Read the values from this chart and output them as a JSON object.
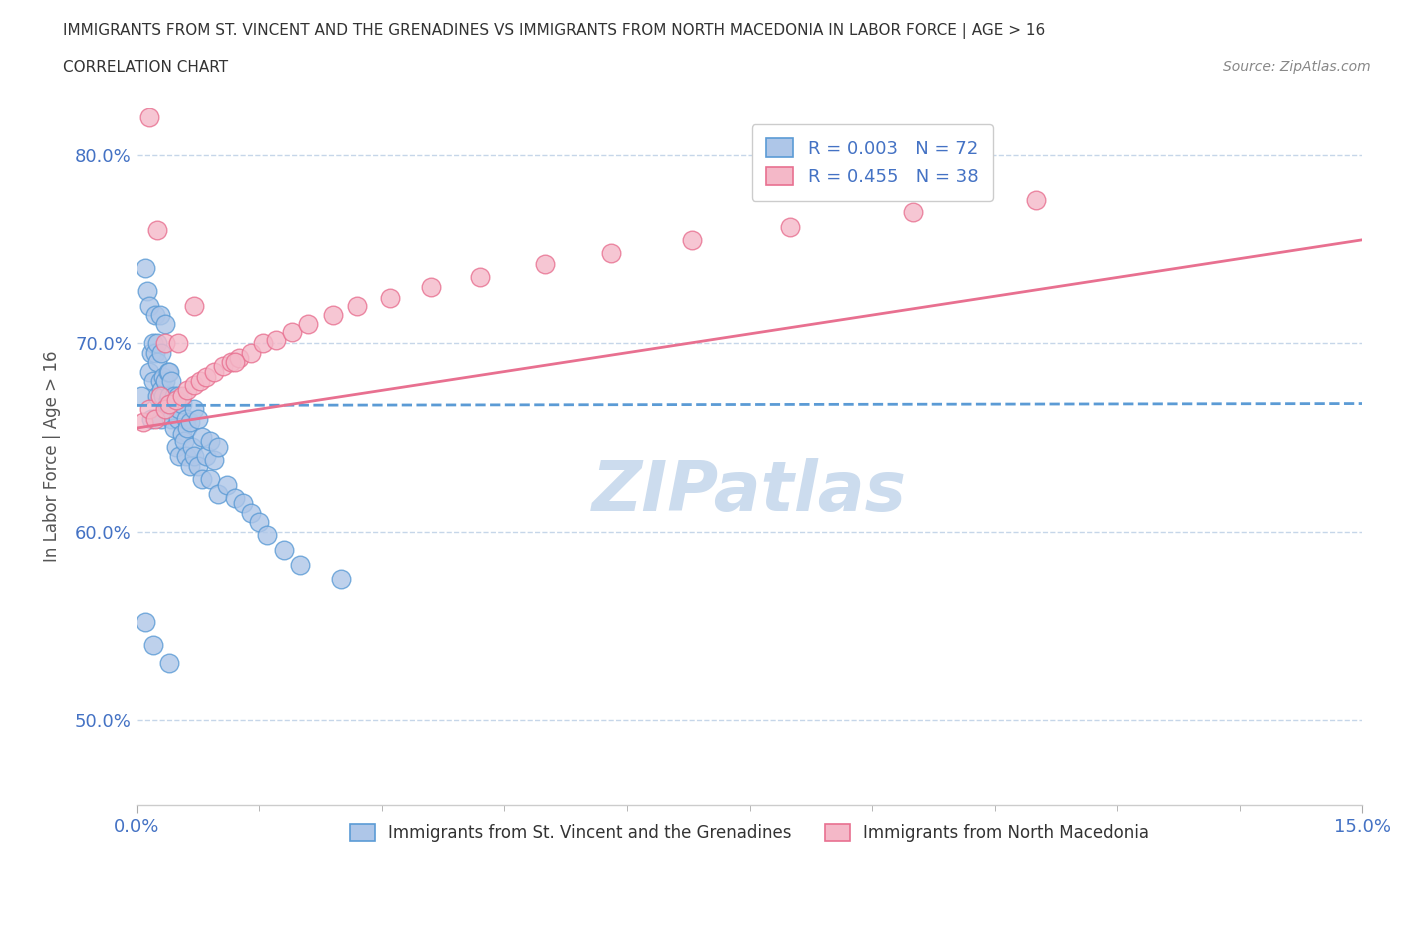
{
  "title1": "IMMIGRANTS FROM ST. VINCENT AND THE GRENADINES VS IMMIGRANTS FROM NORTH MACEDONIA IN LABOR FORCE | AGE > 16",
  "title2": "CORRELATION CHART",
  "source": "Source: ZipAtlas.com",
  "ylabel": "In Labor Force | Age > 16",
  "xlim": [
    0.0,
    0.15
  ],
  "ylim": [
    0.455,
    0.825
  ],
  "yticks": [
    0.5,
    0.6,
    0.7,
    0.8
  ],
  "ytick_labels": [
    "50.0%",
    "60.0%",
    "70.0%",
    "80.0%"
  ],
  "xtick_labels": [
    "0.0%",
    "15.0%"
  ],
  "legend_labels": [
    "Immigrants from St. Vincent and the Grenadines",
    "Immigrants from North Macedonia"
  ],
  "r1": "0.003",
  "n1": 72,
  "r2": "0.455",
  "n2": 38,
  "color1": "#aec6e8",
  "color2": "#f4b8c8",
  "line1_color": "#5b9bd5",
  "line2_color": "#e87090",
  "watermark_color": "#ccdcee",
  "sv_x": [
    0.0005,
    0.001,
    0.0012,
    0.0015,
    0.0015,
    0.0018,
    0.0018,
    0.002,
    0.002,
    0.0022,
    0.0022,
    0.0025,
    0.0025,
    0.0025,
    0.0028,
    0.0028,
    0.003,
    0.003,
    0.003,
    0.0032,
    0.0032,
    0.0035,
    0.0035,
    0.0035,
    0.0038,
    0.0038,
    0.004,
    0.004,
    0.004,
    0.0042,
    0.0042,
    0.0045,
    0.0045,
    0.0048,
    0.0048,
    0.005,
    0.005,
    0.0052,
    0.0052,
    0.0055,
    0.0055,
    0.0058,
    0.006,
    0.006,
    0.0062,
    0.0065,
    0.0065,
    0.0068,
    0.007,
    0.007,
    0.0075,
    0.0075,
    0.008,
    0.008,
    0.0085,
    0.009,
    0.009,
    0.0095,
    0.01,
    0.01,
    0.011,
    0.012,
    0.013,
    0.014,
    0.015,
    0.016,
    0.018,
    0.02,
    0.025,
    0.001,
    0.002,
    0.004
  ],
  "sv_y": [
    0.672,
    0.74,
    0.728,
    0.685,
    0.72,
    0.66,
    0.695,
    0.7,
    0.68,
    0.715,
    0.695,
    0.69,
    0.672,
    0.7,
    0.68,
    0.715,
    0.675,
    0.695,
    0.66,
    0.682,
    0.672,
    0.68,
    0.665,
    0.71,
    0.67,
    0.685,
    0.672,
    0.685,
    0.665,
    0.68,
    0.66,
    0.672,
    0.655,
    0.668,
    0.645,
    0.672,
    0.66,
    0.665,
    0.64,
    0.668,
    0.652,
    0.648,
    0.66,
    0.64,
    0.655,
    0.658,
    0.635,
    0.645,
    0.665,
    0.64,
    0.635,
    0.66,
    0.65,
    0.628,
    0.64,
    0.648,
    0.628,
    0.638,
    0.645,
    0.62,
    0.625,
    0.618,
    0.615,
    0.61,
    0.605,
    0.598,
    0.59,
    0.582,
    0.575,
    0.552,
    0.54,
    0.53
  ],
  "nm_x": [
    0.0008,
    0.0015,
    0.0022,
    0.0028,
    0.0035,
    0.004,
    0.0048,
    0.0055,
    0.0062,
    0.007,
    0.0078,
    0.0085,
    0.0095,
    0.0105,
    0.0115,
    0.0125,
    0.014,
    0.0155,
    0.017,
    0.019,
    0.021,
    0.024,
    0.027,
    0.031,
    0.036,
    0.042,
    0.05,
    0.058,
    0.068,
    0.08,
    0.095,
    0.11,
    0.0015,
    0.0025,
    0.0035,
    0.005,
    0.007,
    0.012
  ],
  "nm_y": [
    0.658,
    0.665,
    0.66,
    0.672,
    0.665,
    0.668,
    0.67,
    0.672,
    0.675,
    0.678,
    0.68,
    0.682,
    0.685,
    0.688,
    0.69,
    0.692,
    0.695,
    0.7,
    0.702,
    0.706,
    0.71,
    0.715,
    0.72,
    0.724,
    0.73,
    0.735,
    0.742,
    0.748,
    0.755,
    0.762,
    0.77,
    0.776,
    0.82,
    0.76,
    0.7,
    0.7,
    0.72,
    0.69
  ]
}
